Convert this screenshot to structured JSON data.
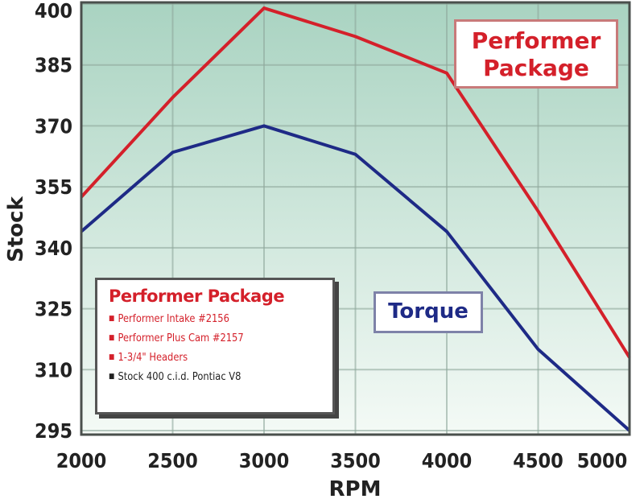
{
  "chart_data": {
    "type": "line",
    "xlabel": "RPM",
    "ylabel": "Stock",
    "x": [
      2000,
      2500,
      3000,
      3500,
      4000,
      4500,
      5000
    ],
    "xticks": [
      "2000",
      "2500",
      "3000",
      "3500",
      "4000",
      "4500",
      "5000"
    ],
    "yticks": [
      "400",
      "385",
      "370",
      "355",
      "340",
      "325",
      "310",
      "295"
    ],
    "xlim": [
      2000,
      5000
    ],
    "ylim": [
      295,
      400
    ],
    "grid": true,
    "series": [
      {
        "name": "Performer Package",
        "color": "#d4202a",
        "values": [
          352.5,
          377,
          399,
          392,
          383,
          349,
          313
        ]
      },
      {
        "name": "Torque",
        "color": "#1e2a86",
        "values": [
          344,
          363.5,
          370,
          363,
          344,
          315,
          295
        ]
      }
    ],
    "annotations": {
      "performer_label": [
        "Performer",
        "Package"
      ],
      "torque_label": "Torque"
    },
    "legend": {
      "placement": "bottom-left",
      "title": "Performer Package",
      "items": [
        {
          "text": "Performer Intake #2156",
          "color": "#d4202a"
        },
        {
          "text": "Performer Plus Cam #2157",
          "color": "#d4202a"
        },
        {
          "text": "1-3/4\" Headers",
          "color": "#d4202a"
        },
        {
          "text": "Stock 400 c.i.d. Pontiac V8",
          "color": "#222222"
        }
      ]
    },
    "background_gradient": [
      "#a9d3c1",
      "#f4faf6"
    ]
  }
}
